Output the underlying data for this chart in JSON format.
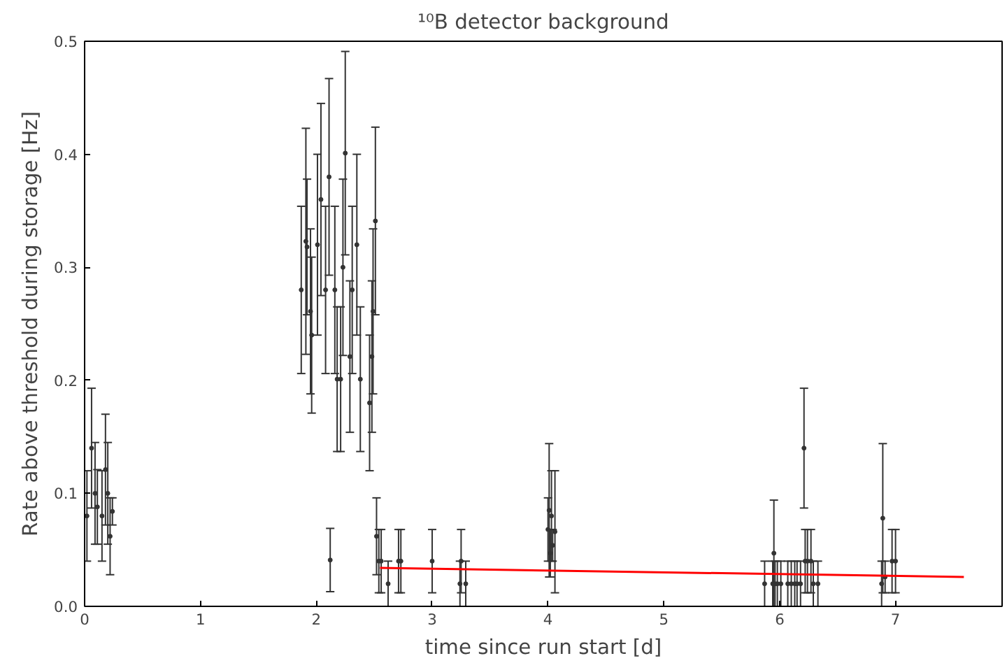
{
  "chart_data": {
    "type": "scatter",
    "title": "¹⁰B detector background",
    "xlabel": "time since run start [d]",
    "ylabel": "Rate above threshold during storage [Hz]",
    "xlim": [
      0,
      7.92
    ],
    "xticks": [
      0,
      1,
      2,
      3,
      4,
      5,
      6,
      7
    ],
    "ylim": [
      0,
      0.5
    ],
    "yticks": [
      {
        "value": 0,
        "label": "0.0"
      },
      {
        "value": 0.1,
        "label": "0.1"
      },
      {
        "value": 0.2,
        "label": "0.2"
      },
      {
        "value": 0.3,
        "label": "0.3"
      },
      {
        "value": 0.4,
        "label": "0.4"
      },
      {
        "value": 0.5,
        "label": "0.5"
      }
    ],
    "grid": false,
    "series": [
      {
        "color": "#333333",
        "marker": "circle",
        "x": [
          0.02,
          0.06,
          0.09,
          0.11,
          0.15,
          0.18,
          0.2,
          0.22,
          0.24,
          1.87,
          1.91,
          1.92,
          1.95,
          1.96,
          2.01,
          2.04,
          2.08,
          2.11,
          2.12,
          2.16,
          2.18,
          2.21,
          2.23,
          2.25,
          2.29,
          2.31,
          2.35,
          2.38,
          2.46,
          2.48,
          2.49,
          2.51,
          2.52,
          2.54,
          2.56,
          2.62,
          2.71,
          2.73,
          3.0,
          3.24,
          3.25,
          3.29,
          4.0,
          4.01,
          4.02,
          4.03,
          4.04,
          4.06,
          5.87,
          5.94,
          5.95,
          5.96,
          5.98,
          6.01,
          6.07,
          6.1,
          6.13,
          6.15,
          6.18,
          6.21,
          6.22,
          6.24,
          6.27,
          6.29,
          6.33,
          6.88,
          6.89,
          6.91,
          6.97,
          7.0
        ],
        "values": [
          0.08,
          0.14,
          0.1,
          0.088,
          0.08,
          0.121,
          0.1,
          0.062,
          0.084,
          0.28,
          0.323,
          0.318,
          0.261,
          0.24,
          0.32,
          0.36,
          0.28,
          0.38,
          0.041,
          0.28,
          0.201,
          0.201,
          0.3,
          0.401,
          0.221,
          0.28,
          0.32,
          0.201,
          0.18,
          0.221,
          0.261,
          0.341,
          0.062,
          0.04,
          0.04,
          0.02,
          0.04,
          0.04,
          0.04,
          0.02,
          0.04,
          0.02,
          0.068,
          0.085,
          0.047,
          0.08,
          0.054,
          0.066,
          0.02,
          0.02,
          0.047,
          0.02,
          0.02,
          0.02,
          0.02,
          0.02,
          0.02,
          0.02,
          0.02,
          0.14,
          0.04,
          0.04,
          0.04,
          0.02,
          0.02,
          0.02,
          0.078,
          0.026,
          0.04,
          0.04
        ],
        "errors": [
          0.04,
          0.053,
          0.045,
          0.033,
          0.04,
          0.049,
          0.045,
          0.034,
          0.012,
          0.074,
          0.1,
          0.06,
          0.073,
          0.069,
          0.08,
          0.085,
          0.074,
          0.087,
          0.028,
          0.074,
          0.064,
          0.064,
          0.078,
          0.09,
          0.067,
          0.074,
          0.08,
          0.064,
          0.06,
          0.067,
          0.073,
          0.083,
          0.034,
          0.028,
          0.028,
          0.02,
          0.028,
          0.028,
          0.028,
          0.02,
          0.028,
          0.02,
          0.028,
          0.059,
          0.021,
          0.04,
          0.014,
          0.054,
          0.02,
          0.02,
          0.047,
          0.02,
          0.02,
          0.02,
          0.02,
          0.02,
          0.02,
          0.02,
          0.02,
          0.053,
          0.028,
          0.028,
          0.028,
          0.02,
          0.02,
          0.02,
          0.066,
          0.014,
          0.028,
          0.028
        ]
      },
      {
        "type": "line",
        "color": "#ff0000",
        "x": [
          2.55,
          7.59
        ],
        "values": [
          0.034,
          0.026
        ]
      }
    ]
  }
}
